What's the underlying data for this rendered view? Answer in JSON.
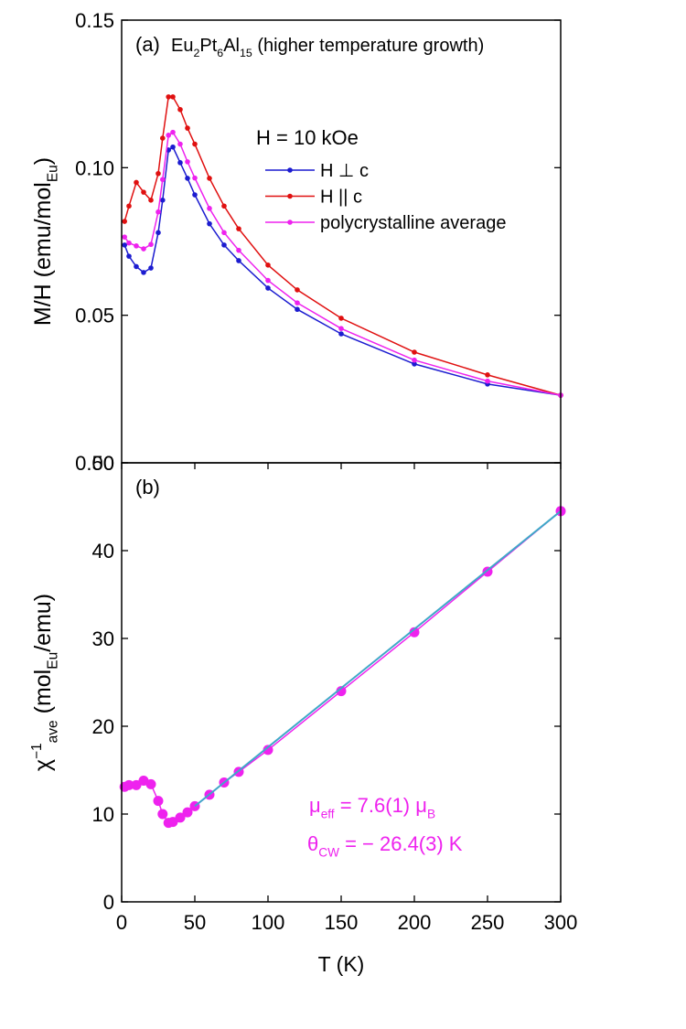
{
  "chart_data": [
    {
      "type": "line",
      "panel_label": "(a)",
      "sample": [
        "Eu",
        {
          "sub": "2"
        },
        "Pt",
        {
          "sub": "6"
        },
        "Al",
        {
          "sub": "15"
        },
        " (higher temperature growth)"
      ],
      "ylabel": [
        "M/H (emu/mol",
        {
          "sub": "Eu"
        },
        ")"
      ],
      "legend_title": "H = 10 kOe",
      "legend": true,
      "xlim": [
        0,
        300
      ],
      "ylim": [
        0,
        0.15
      ],
      "yticks": [
        {
          "value": 0,
          "label": "0.00"
        },
        0.05,
        {
          "value": 0.1,
          "label": "0.10"
        },
        0.15
      ],
      "series": [
        {
          "name": "H ⊥ c",
          "color": "#1c1cd0",
          "x": [
            2,
            5,
            10,
            15,
            20,
            25,
            28,
            32,
            35,
            40,
            45,
            50,
            60,
            70,
            80,
            100,
            120,
            150,
            200,
            250,
            300
          ],
          "values": [
            0.0738,
            0.07,
            0.0665,
            0.0645,
            0.066,
            0.078,
            0.089,
            0.106,
            0.107,
            0.1017,
            0.0964,
            0.0908,
            0.081,
            0.0738,
            0.0685,
            0.0592,
            0.052,
            0.0437,
            0.0335,
            0.0267,
            0.0229
          ]
        },
        {
          "name": "H || c",
          "color": "#e01010",
          "x": [
            2,
            5,
            10,
            15,
            20,
            25,
            28,
            32,
            35,
            40,
            45,
            50,
            60,
            70,
            80,
            100,
            120,
            150,
            200,
            250,
            300
          ],
          "values": [
            0.0818,
            0.087,
            0.095,
            0.0917,
            0.089,
            0.098,
            0.11,
            0.124,
            0.124,
            0.1197,
            0.1134,
            0.108,
            0.0964,
            0.087,
            0.0793,
            0.067,
            0.0586,
            0.049,
            0.0375,
            0.0298,
            0.0229
          ]
        },
        {
          "name": "polycrystalline average",
          "color": "#ee22ee",
          "x": [
            2,
            5,
            10,
            15,
            20,
            25,
            28,
            32,
            35,
            40,
            45,
            50,
            60,
            70,
            80,
            100,
            120,
            150,
            200,
            250,
            300
          ],
          "values": [
            0.0765,
            0.0745,
            0.0735,
            0.0725,
            0.074,
            0.085,
            0.096,
            0.111,
            0.112,
            0.108,
            0.102,
            0.0965,
            0.0862,
            0.078,
            0.072,
            0.0618,
            0.0542,
            0.0455,
            0.0348,
            0.0277,
            0.0229
          ]
        }
      ]
    },
    {
      "type": "line",
      "panel_label": "(b)",
      "ylabel": [
        "χ",
        {
          "sup": "−1"
        },
        {
          "sub": "ave"
        },
        " (mol",
        {
          "sub": "Eu"
        },
        "/emu)"
      ],
      "xlabel": "T (K)",
      "xlim": [
        0,
        300
      ],
      "xticks": [
        0,
        50,
        100,
        150,
        200,
        250,
        300
      ],
      "ylim": [
        0,
        50
      ],
      "yticks": [
        0,
        10,
        20,
        30,
        40,
        50
      ],
      "annotation_color": "#ee22ee",
      "annotations": [
        [
          "μ",
          {
            "sub": "eff"
          },
          " = 7.6(1) μ",
          {
            "sub": "B"
          }
        ],
        [
          "θ",
          {
            "sub": "CW"
          },
          " = − 26.4(3) K"
        ]
      ],
      "series": [
        {
          "color": "#ee22ee",
          "marker": true,
          "x": [
            2,
            5,
            10,
            15,
            20,
            25,
            28,
            32,
            35,
            40,
            45,
            50,
            60,
            70,
            80,
            100,
            150,
            200,
            250,
            300
          ],
          "values": [
            13.1,
            13.3,
            13.3,
            13.8,
            13.4,
            11.5,
            10.0,
            9.0,
            9.1,
            9.6,
            10.2,
            10.9,
            12.2,
            13.6,
            14.8,
            17.3,
            24.0,
            30.7,
            37.6,
            44.5
          ]
        },
        {
          "color": "#40a8c8",
          "marker": false,
          "x": [
            50,
            300
          ],
          "values": [
            10.9,
            44.5
          ]
        }
      ]
    }
  ]
}
